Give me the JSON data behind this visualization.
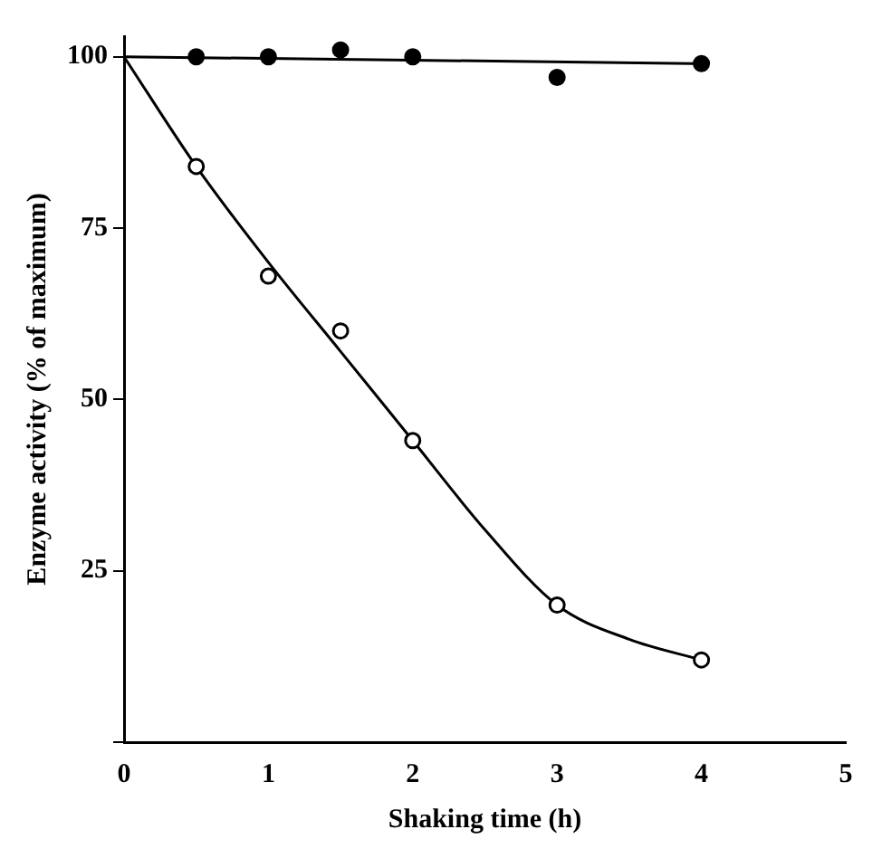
{
  "chart_data": {
    "type": "scatter",
    "xlabel": "Shaking time (h)",
    "ylabel": "Enzyme activity (% of maximum)",
    "xlim": [
      0,
      5
    ],
    "xticks": [
      0,
      1,
      2,
      3,
      4,
      5
    ],
    "ylim": [
      0,
      103
    ],
    "yticks": [
      {
        "value": 0,
        "label": null
      },
      25,
      50,
      75,
      100
    ],
    "grid": false,
    "legend": false,
    "series": [
      {
        "marker": "circle",
        "color": "#000000",
        "x": [
          0.5,
          1,
          1.5,
          2,
          3,
          4
        ],
        "values": [
          100,
          100,
          101,
          100,
          97,
          99
        ]
      },
      {
        "marker": "circle",
        "color": "#ffffff",
        "x": [
          0.5,
          1,
          1.5,
          2,
          3,
          4
        ],
        "values": [
          84,
          68,
          60,
          44,
          20,
          12
        ]
      },
      {
        "type": "line",
        "marker": "none",
        "color": "#000000",
        "x": [
          0,
          4
        ],
        "values": [
          100,
          99
        ]
      },
      {
        "type": "line",
        "marker": "none",
        "color": "#000000",
        "x": [
          0,
          0.5,
          1,
          1.5,
          2,
          2.5,
          3,
          3.5,
          4
        ],
        "values": [
          100,
          84,
          70,
          57,
          44,
          31,
          20,
          15,
          12
        ]
      }
    ]
  }
}
